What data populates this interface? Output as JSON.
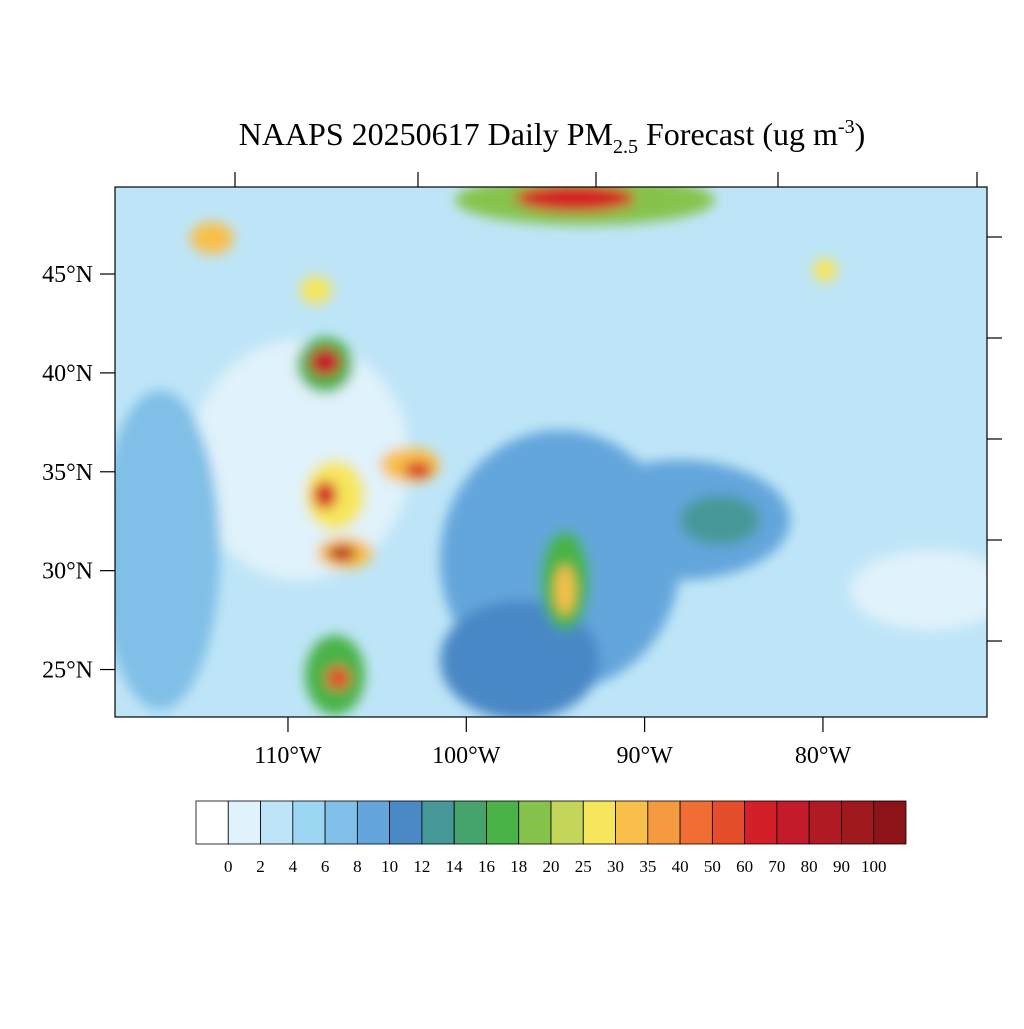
{
  "map": {
    "title": {
      "main": "NAAPS 20250617 Daily PM",
      "sub": "2.5",
      "rest": " Forecast (ug m",
      "sup": "-3",
      "end": ")"
    },
    "lon_range": [
      -119.7,
      -70.8
    ],
    "lat_range": [
      22.6,
      49.4
    ],
    "lon_ticks": [
      {
        "value": -110,
        "label": "110°W"
      },
      {
        "value": -100,
        "label": "100°W"
      },
      {
        "value": -90,
        "label": "90°W"
      },
      {
        "value": -80,
        "label": "80°W"
      }
    ],
    "lat_ticks": [
      {
        "value": 45,
        "label": "45°N"
      },
      {
        "value": 40,
        "label": "40°N"
      },
      {
        "value": 35,
        "label": "35°N"
      },
      {
        "value": 30,
        "label": "30°N"
      },
      {
        "value": 25,
        "label": "25°N"
      }
    ],
    "colorbar": {
      "labels": [
        0,
        2,
        4,
        6,
        8,
        10,
        12,
        14,
        16,
        18,
        20,
        25,
        30,
        35,
        40,
        50,
        60,
        70,
        80,
        90,
        100
      ],
      "colors": [
        "#ffffff",
        "#e0f2fb",
        "#bee5f7",
        "#9cd6f3",
        "#80bfe7",
        "#64a6dc",
        "#4a88c6",
        "#479899",
        "#45a36c",
        "#4ab348",
        "#86c34c",
        "#c3d659",
        "#f6e65b",
        "#f8bf4b",
        "#f69a3f",
        "#f06d33",
        "#e44c2a",
        "#d32028",
        "#c31b2a",
        "#b01a23",
        "#a0191f",
        "#8c1418"
      ]
    }
  }
}
